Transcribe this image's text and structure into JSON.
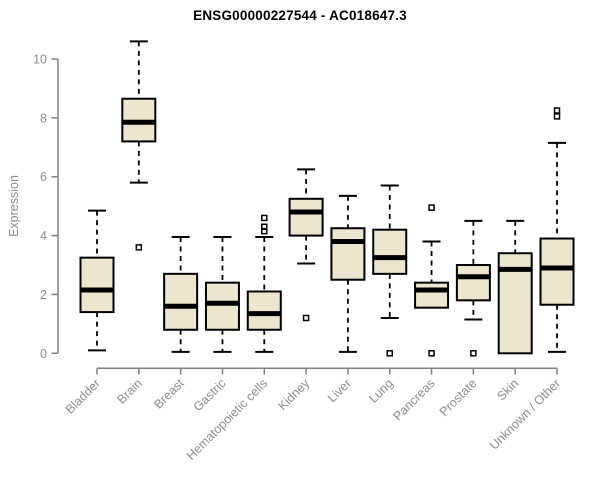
{
  "chart_data": {
    "type": "boxplot",
    "title": "ENSG00000227544 - AC018647.3",
    "ylabel": "Expression",
    "xlabel": "",
    "ylim": [
      0,
      10
    ],
    "yticks": [
      0,
      2,
      4,
      6,
      8,
      10
    ],
    "grid": false,
    "legend": false,
    "categories": [
      "Bladder",
      "Brain",
      "Breast",
      "Gastric",
      "Hematopoietic cells",
      "Kidney",
      "Liver",
      "Lung",
      "Pancreas",
      "Prostate",
      "Skin",
      "Unknown / Other"
    ],
    "boxes": [
      {
        "category": "Bladder",
        "min": 0.1,
        "q1": 1.4,
        "median": 2.15,
        "q3": 3.25,
        "max": 4.85,
        "outliers": []
      },
      {
        "category": "Brain",
        "min": 5.8,
        "q1": 7.2,
        "median": 7.85,
        "q3": 8.65,
        "max": 10.6,
        "outliers": [
          3.6
        ]
      },
      {
        "category": "Breast",
        "min": 0.05,
        "q1": 0.8,
        "median": 1.6,
        "q3": 2.7,
        "max": 3.95,
        "outliers": []
      },
      {
        "category": "Gastric",
        "min": 0.05,
        "q1": 0.8,
        "median": 1.7,
        "q3": 2.4,
        "max": 3.95,
        "outliers": []
      },
      {
        "category": "Hematopoietic cells",
        "min": 0.05,
        "q1": 0.8,
        "median": 1.35,
        "q3": 2.1,
        "max": 3.95,
        "outliers": [
          4.6,
          4.3,
          4.15
        ]
      },
      {
        "category": "Kidney",
        "min": 3.05,
        "q1": 4.0,
        "median": 4.8,
        "q3": 5.25,
        "max": 6.25,
        "outliers": [
          1.2
        ]
      },
      {
        "category": "Liver",
        "min": 0.05,
        "q1": 2.5,
        "median": 3.8,
        "q3": 4.25,
        "max": 5.35,
        "outliers": []
      },
      {
        "category": "Lung",
        "min": 1.2,
        "q1": 2.7,
        "median": 3.25,
        "q3": 4.2,
        "max": 5.7,
        "outliers": [
          0.0
        ]
      },
      {
        "category": "Pancreas",
        "min": 1.55,
        "q1": 1.55,
        "median": 2.15,
        "q3": 2.4,
        "max": 3.8,
        "outliers": [
          4.95,
          0.0
        ]
      },
      {
        "category": "Prostate",
        "min": 1.15,
        "q1": 1.8,
        "median": 2.6,
        "q3": 3.0,
        "max": 4.5,
        "outliers": [
          0.0
        ]
      },
      {
        "category": "Skin",
        "min": 0.0,
        "q1": 0.0,
        "median": 2.85,
        "q3": 3.4,
        "max": 4.5,
        "outliers": []
      },
      {
        "category": "Unknown / Other",
        "min": 0.05,
        "q1": 1.65,
        "median": 2.9,
        "q3": 3.9,
        "max": 7.15,
        "outliers": [
          8.25,
          8.05
        ]
      }
    ],
    "colors": {
      "box_fill": "#EBE6CD",
      "box_border": "#000000",
      "median": "#000000",
      "whisker": "#000000",
      "axis_line": "#808080",
      "tick_text": "#8c8c8c",
      "title_text": "#000000",
      "background": "#ffffff"
    }
  }
}
